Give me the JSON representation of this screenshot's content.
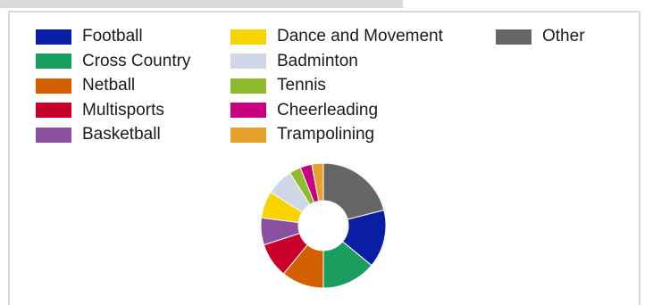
{
  "chart_data": {
    "type": "pie",
    "variant": "donut",
    "categories": [
      "Football",
      "Cross Country",
      "Netball",
      "Multisports",
      "Basketball",
      "Dance and Movement",
      "Badminton",
      "Tennis",
      "Cheerleading",
      "Trampolining",
      "Other"
    ],
    "values": [
      15,
      14,
      11,
      9,
      7,
      7,
      7,
      3,
      3,
      3,
      21
    ],
    "colors": [
      "#0a1fa6",
      "#1a9e5f",
      "#d45f00",
      "#c8002a",
      "#8b4fa0",
      "#f7d400",
      "#cfd6e8",
      "#8ebb2e",
      "#c8007f",
      "#e6a22b",
      "#666666"
    ],
    "legend_position": "top",
    "start": "12 o'clock, clockwise from Other",
    "title": ""
  }
}
